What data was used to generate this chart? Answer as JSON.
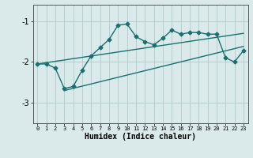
{
  "xlabel": "Humidex (Indice chaleur)",
  "bg_color": "#daeaea",
  "grid_color": "#b0cccc",
  "line_color": "#1a7070",
  "xlim": [
    -0.5,
    23.5
  ],
  "ylim": [
    -3.5,
    -0.6
  ],
  "yticks": [
    -3,
    -2,
    -1
  ],
  "xticks": [
    0,
    1,
    2,
    3,
    4,
    5,
    6,
    7,
    8,
    9,
    10,
    11,
    12,
    13,
    14,
    15,
    16,
    17,
    18,
    19,
    20,
    21,
    22,
    23
  ],
  "main_x": [
    0,
    1,
    2,
    3,
    4,
    5,
    6,
    7,
    8,
    9,
    10,
    11,
    12,
    13,
    14,
    15,
    16,
    17,
    18,
    19,
    20,
    21,
    22,
    23
  ],
  "main_y": [
    -2.05,
    -2.05,
    -2.15,
    -2.65,
    -2.6,
    -2.2,
    -1.85,
    -1.65,
    -1.45,
    -1.1,
    -1.07,
    -1.38,
    -1.5,
    -1.58,
    -1.42,
    -1.22,
    -1.32,
    -1.28,
    -1.28,
    -1.32,
    -1.32,
    -1.9,
    -2.0,
    -1.72
  ],
  "upper_line_x": [
    0,
    23
  ],
  "upper_line_y": [
    -2.05,
    -1.3
  ],
  "lower_line_x": [
    3,
    23
  ],
  "lower_line_y": [
    -2.7,
    -1.62
  ],
  "marker": "D",
  "markersize": 2.5,
  "linewidth": 1.0
}
